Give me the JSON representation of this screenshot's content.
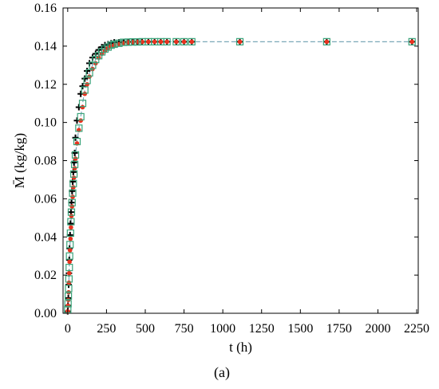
{
  "chart_data": {
    "type": "scatter",
    "caption": "(a)",
    "xlabel": "t (h)",
    "ylabel": "M̄ (kg/kg)",
    "xlim": [
      -30,
      2260
    ],
    "ylim": [
      0,
      0.16
    ],
    "xticks": [
      "0",
      "250",
      "500",
      "750",
      "1000",
      "1250",
      "1500",
      "1750",
      "2000",
      "2250"
    ],
    "yticks": [
      "0.00",
      "0.02",
      "0.04",
      "0.06",
      "0.08",
      "0.10",
      "0.12",
      "0.14",
      "0.16"
    ],
    "grid": false,
    "legend": "none",
    "colors": {
      "cross": "#000000",
      "dot": "#e8321e",
      "square": "#3aa37a",
      "fit_line": "#7aa8b8"
    },
    "series": [
      {
        "marker": "plus",
        "color": "#000000",
        "x": [
          0,
          2,
          4,
          6,
          8,
          10,
          12,
          15,
          18,
          21,
          24,
          28,
          32,
          36,
          40,
          45,
          50,
          60,
          72,
          84,
          96,
          110,
          125,
          140,
          160,
          180,
          200,
          220,
          240,
          260,
          280,
          300,
          330,
          360,
          390,
          420,
          450,
          480,
          520,
          560,
          600,
          640,
          700,
          750,
          800,
          1110,
          1670,
          2220
        ],
        "y": [
          0.001,
          0.004,
          0.008,
          0.015,
          0.021,
          0.028,
          0.034,
          0.041,
          0.047,
          0.053,
          0.058,
          0.064,
          0.069,
          0.074,
          0.079,
          0.084,
          0.092,
          0.101,
          0.108,
          0.115,
          0.119,
          0.123,
          0.127,
          0.131,
          0.134,
          0.136,
          0.138,
          0.1395,
          0.1405,
          0.141,
          0.1415,
          0.142,
          0.142,
          0.1422,
          0.1422,
          0.1423,
          0.1423,
          0.1423,
          0.1423,
          0.1423,
          0.1423,
          0.1423,
          0.1423,
          0.1423,
          0.1423,
          0.1423,
          0.1423,
          0.1423
        ]
      },
      {
        "marker": "dot",
        "color": "#e8321e",
        "x": [
          0,
          2,
          4,
          6,
          8,
          10,
          12,
          15,
          18,
          21,
          24,
          28,
          32,
          36,
          40,
          45,
          50,
          60,
          72,
          84,
          96,
          110,
          125,
          140,
          160,
          180,
          200,
          220,
          240,
          260,
          280,
          300,
          330,
          360,
          390,
          420,
          450,
          480,
          520,
          560,
          600,
          640,
          700,
          750,
          800,
          1110,
          1670,
          2220
        ],
        "y": [
          0.001,
          0.004,
          0.007,
          0.011,
          0.016,
          0.021,
          0.027,
          0.033,
          0.039,
          0.045,
          0.051,
          0.056,
          0.061,
          0.066,
          0.071,
          0.076,
          0.081,
          0.089,
          0.096,
          0.101,
          0.108,
          0.115,
          0.12,
          0.124,
          0.128,
          0.131,
          0.134,
          0.136,
          0.1375,
          0.139,
          0.14,
          0.1405,
          0.141,
          0.1415,
          0.142,
          0.1421,
          0.1422,
          0.1422,
          0.1423,
          0.1423,
          0.1423,
          0.1423,
          0.1423,
          0.1423,
          0.1423,
          0.1423,
          0.1423,
          0.1423
        ]
      },
      {
        "marker": "square",
        "color": "#3aa37a",
        "x": [
          0,
          2,
          4,
          6,
          8,
          10,
          12,
          15,
          18,
          21,
          24,
          28,
          32,
          36,
          40,
          45,
          50,
          60,
          72,
          84,
          96,
          110,
          125,
          140,
          160,
          180,
          200,
          220,
          240,
          260,
          280,
          300,
          330,
          360,
          390,
          420,
          450,
          480,
          520,
          560,
          600,
          640,
          700,
          750,
          800,
          1110,
          1670,
          2220
        ],
        "y": [
          0.002,
          0.005,
          0.009,
          0.013,
          0.018,
          0.024,
          0.03,
          0.036,
          0.042,
          0.048,
          0.053,
          0.058,
          0.063,
          0.068,
          0.073,
          0.078,
          0.083,
          0.09,
          0.097,
          0.103,
          0.11,
          0.117,
          0.122,
          0.126,
          0.13,
          0.133,
          0.135,
          0.137,
          0.1385,
          0.1395,
          0.1405,
          0.141,
          0.1415,
          0.142,
          0.1421,
          0.1422,
          0.1422,
          0.1423,
          0.1423,
          0.1423,
          0.1423,
          0.1423,
          0.1423,
          0.1423,
          0.1423,
          0.1423,
          0.1423,
          0.1423
        ]
      }
    ]
  }
}
